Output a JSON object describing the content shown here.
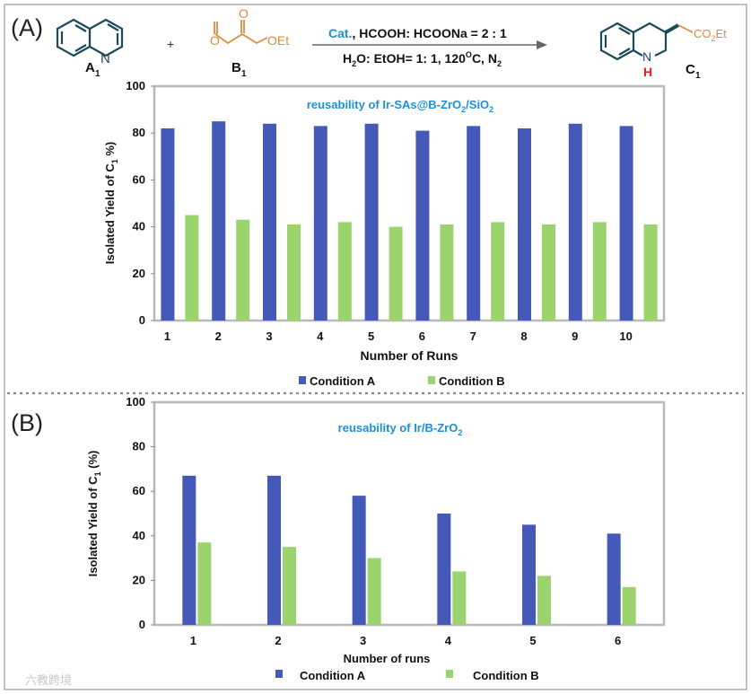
{
  "panel_a_label": "(A)",
  "panel_b_label": "(B)",
  "reaction": {
    "reactant_a_label": "A",
    "reactant_a_sub": "1",
    "reactant_b_label": "B",
    "reactant_b_sub": "1",
    "reactant_b_oet": "OEt",
    "ring_n": "N",
    "plus": "+",
    "cond_cat": "Cat.",
    "cond_rest": ", HCOOH: HCOONa = 2 : 1",
    "cond2_h": "H",
    "cond2_h_sub": "2",
    "cond2_mid": "O: EtOH= 1: 1, 120",
    "cond2_deg": "O",
    "cond2_c": "C, N",
    "cond2_n_sub": "2",
    "product_label": "C",
    "product_sub": "1",
    "product_co": "CO",
    "product_co_sub": "2",
    "product_et": "Et",
    "product_nh_n": "N",
    "product_nh_h": "H"
  },
  "watermark": "六教跨境",
  "colors": {
    "condition_a": "#4559b8",
    "condition_b": "#9bd46e",
    "title_blue": "#1d8fd6",
    "orange": "#e08a3c",
    "teal": "#1a4a5a",
    "red": "#e02020"
  },
  "chart_data": [
    {
      "type": "bar",
      "title_main": "reusability of Ir-SAs@B-ZrO",
      "title_sub": "2",
      "title_tail": "/SiO",
      "title_sub2": "2",
      "xlabel": "Number of Runs",
      "ylabel_pre": "Isolated Yield  of C",
      "ylabel_sub": "1",
      "ylabel_post": " %)",
      "ylim": [
        0,
        100
      ],
      "yticks": [
        0,
        20,
        40,
        60,
        80,
        100
      ],
      "categories": [
        "1",
        "2",
        "3",
        "4",
        "5",
        "6",
        "7",
        "8",
        "9",
        "10"
      ],
      "series": [
        {
          "name": "Condition A",
          "values": [
            82,
            85,
            84,
            83,
            84,
            81,
            83,
            82,
            84,
            83
          ]
        },
        {
          "name": "Condition B",
          "values": [
            45,
            43,
            41,
            42,
            40,
            41,
            42,
            41,
            42,
            41
          ]
        }
      ]
    },
    {
      "type": "bar",
      "title_main": "reusability of Ir/B-ZrO",
      "title_sub": "2",
      "title_tail": "",
      "title_sub2": "",
      "xlabel": "Number of runs",
      "ylabel_pre": "Isolated Yield  of C",
      "ylabel_sub": "1",
      "ylabel_post": " (%)",
      "ylim": [
        0,
        100
      ],
      "yticks": [
        0,
        20,
        40,
        60,
        80,
        100
      ],
      "categories": [
        "1",
        "2",
        "3",
        "4",
        "5",
        "6"
      ],
      "series": [
        {
          "name": "Condition A",
          "values": [
            67,
            67,
            58,
            50,
            45,
            41
          ]
        },
        {
          "name": "Condition B",
          "values": [
            37,
            35,
            30,
            24,
            22,
            17
          ]
        }
      ]
    }
  ]
}
